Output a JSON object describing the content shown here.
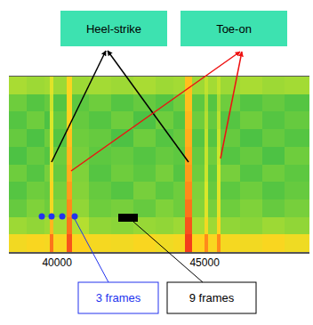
{
  "chart_data": {
    "type": "heatmap",
    "annotations": [
      "Heel-strike",
      "Toe-on",
      "3 frames",
      "9 frames"
    ],
    "x": [
      38370,
      38972,
      39575,
      39756,
      39876,
      40328,
      40509,
      41081,
      41834,
      42587,
      43340,
      43942,
      44334,
      44575,
      44996,
      45117,
      45418,
      45539,
      46201,
      46954,
      47707,
      48550
    ],
    "y": [
      0,
      1,
      2,
      3,
      4,
      5,
      6,
      7,
      8,
      9,
      10
    ],
    "z": [
      [
        0.78,
        0.8,
        0.79,
        0.92,
        0.8,
        0.95,
        0.82,
        0.79,
        0.78,
        0.8,
        0.77,
        0.79,
        0.97,
        0.82,
        0.9,
        0.8,
        0.9,
        0.79,
        0.78,
        0.8,
        0.77
      ],
      [
        0.6,
        0.58,
        0.6,
        0.85,
        0.62,
        0.92,
        0.64,
        0.58,
        0.57,
        0.59,
        0.58,
        0.6,
        0.95,
        0.62,
        0.78,
        0.6,
        0.8,
        0.58,
        0.57,
        0.6,
        0.58
      ],
      [
        0.52,
        0.55,
        0.53,
        0.78,
        0.56,
        0.9,
        0.58,
        0.53,
        0.54,
        0.52,
        0.55,
        0.53,
        0.92,
        0.56,
        0.72,
        0.54,
        0.74,
        0.53,
        0.55,
        0.52,
        0.54
      ],
      [
        0.5,
        0.53,
        0.52,
        0.8,
        0.54,
        0.88,
        0.56,
        0.52,
        0.5,
        0.54,
        0.51,
        0.53,
        0.9,
        0.55,
        0.7,
        0.52,
        0.72,
        0.51,
        0.53,
        0.5,
        0.52
      ],
      [
        0.53,
        0.5,
        0.54,
        0.76,
        0.52,
        0.86,
        0.55,
        0.5,
        0.53,
        0.51,
        0.54,
        0.5,
        0.88,
        0.53,
        0.68,
        0.51,
        0.7,
        0.54,
        0.5,
        0.53,
        0.51
      ],
      [
        0.49,
        0.52,
        0.5,
        0.74,
        0.53,
        0.85,
        0.54,
        0.51,
        0.52,
        0.5,
        0.52,
        0.51,
        0.87,
        0.52,
        0.67,
        0.53,
        0.68,
        0.5,
        0.52,
        0.49,
        0.53
      ],
      [
        0.52,
        0.49,
        0.53,
        0.72,
        0.5,
        0.84,
        0.53,
        0.52,
        0.49,
        0.53,
        0.5,
        0.52,
        0.86,
        0.5,
        0.66,
        0.5,
        0.67,
        0.52,
        0.49,
        0.52,
        0.5
      ],
      [
        0.5,
        0.53,
        0.49,
        0.7,
        0.52,
        0.82,
        0.52,
        0.5,
        0.53,
        0.49,
        0.53,
        0.5,
        0.85,
        0.53,
        0.64,
        0.52,
        0.65,
        0.5,
        0.53,
        0.5,
        0.52
      ],
      [
        0.53,
        0.5,
        0.52,
        0.68,
        0.5,
        0.8,
        0.51,
        0.53,
        0.5,
        0.52,
        0.5,
        0.53,
        0.84,
        0.51,
        0.62,
        0.5,
        0.62,
        0.53,
        0.5,
        0.52,
        0.5
      ],
      [
        0.62,
        0.6,
        0.61,
        0.72,
        0.6,
        0.8,
        0.6,
        0.61,
        0.6,
        0.62,
        0.6,
        0.61,
        0.84,
        0.6,
        0.66,
        0.61,
        0.66,
        0.6,
        0.62,
        0.6,
        0.61
      ]
    ],
    "zlim": [
      0,
      1
    ],
    "xlim": [
      38370,
      48550
    ],
    "xticks": [
      40000,
      45000
    ],
    "ylim": [
      0,
      10
    ],
    "tick_labels": "x",
    "grid": false
  }
}
